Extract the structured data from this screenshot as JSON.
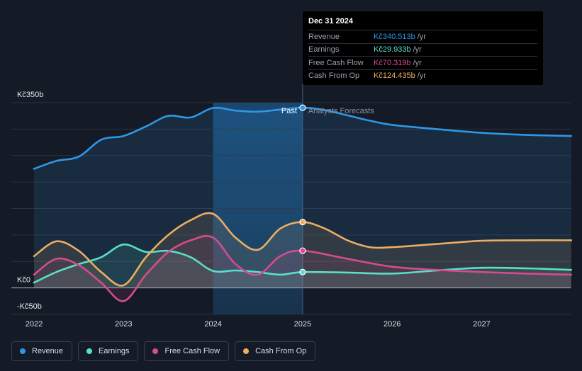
{
  "chart_data": {
    "type": "line",
    "title": "",
    "xlabel": "",
    "ylabel": "",
    "ylim": [
      -50,
      350
    ],
    "y_axis_labels": [
      {
        "value": 350,
        "label": "Kč350b"
      },
      {
        "value": 0,
        "label": "Kč0"
      },
      {
        "value": -50,
        "label": "-Kč50b"
      }
    ],
    "x_ticks": [
      {
        "value": 2022,
        "label": "2022"
      },
      {
        "value": 2023,
        "label": "2023"
      },
      {
        "value": 2024,
        "label": "2024"
      },
      {
        "value": 2025,
        "label": "2025"
      },
      {
        "value": 2026,
        "label": "2026"
      },
      {
        "value": 2027,
        "label": "2027"
      }
    ],
    "xlim": [
      2021.75,
      2028.0
    ],
    "divider_x": 2025.0,
    "highlight_range": [
      2024.0,
      2025.0
    ],
    "period_labels": {
      "past": "Past",
      "forecast": "Analysts Forecasts"
    },
    "series": [
      {
        "name": "Revenue",
        "color": "#2e97e6",
        "points": [
          [
            2022.0,
            225
          ],
          [
            2022.25,
            240
          ],
          [
            2022.5,
            248
          ],
          [
            2022.75,
            280
          ],
          [
            2023.0,
            287
          ],
          [
            2023.25,
            305
          ],
          [
            2023.5,
            325
          ],
          [
            2023.75,
            322
          ],
          [
            2024.0,
            340
          ],
          [
            2024.25,
            335
          ],
          [
            2024.5,
            333
          ],
          [
            2024.75,
            337
          ],
          [
            2025.0,
            340.5
          ],
          [
            2025.25,
            336
          ],
          [
            2025.5,
            326
          ],
          [
            2025.75,
            316
          ],
          [
            2026.0,
            308
          ],
          [
            2026.5,
            300
          ],
          [
            2027.0,
            293
          ],
          [
            2027.5,
            289
          ],
          [
            2028.0,
            287
          ]
        ]
      },
      {
        "name": "Earnings",
        "color": "#58e0c8",
        "points": [
          [
            2022.0,
            10
          ],
          [
            2022.25,
            30
          ],
          [
            2022.5,
            45
          ],
          [
            2022.75,
            58
          ],
          [
            2023.0,
            82
          ],
          [
            2023.25,
            68
          ],
          [
            2023.5,
            70
          ],
          [
            2023.75,
            58
          ],
          [
            2024.0,
            32
          ],
          [
            2024.25,
            33
          ],
          [
            2024.5,
            30
          ],
          [
            2024.75,
            25
          ],
          [
            2025.0,
            29.9
          ],
          [
            2025.5,
            29
          ],
          [
            2026.0,
            27
          ],
          [
            2026.5,
            33
          ],
          [
            2027.0,
            38
          ],
          [
            2027.5,
            37
          ],
          [
            2028.0,
            34
          ]
        ]
      },
      {
        "name": "Free Cash Flow",
        "color": "#d64b8f",
        "points": [
          [
            2022.0,
            25
          ],
          [
            2022.25,
            55
          ],
          [
            2022.5,
            43
          ],
          [
            2022.75,
            10
          ],
          [
            2023.0,
            -25
          ],
          [
            2023.25,
            25
          ],
          [
            2023.5,
            68
          ],
          [
            2023.75,
            90
          ],
          [
            2024.0,
            95
          ],
          [
            2024.25,
            45
          ],
          [
            2024.5,
            25
          ],
          [
            2024.75,
            60
          ],
          [
            2025.0,
            70.3
          ],
          [
            2025.5,
            55
          ],
          [
            2026.0,
            40
          ],
          [
            2026.5,
            34
          ],
          [
            2027.0,
            30
          ],
          [
            2027.5,
            27
          ],
          [
            2028.0,
            25
          ]
        ]
      },
      {
        "name": "Cash From Op",
        "color": "#ecad63",
        "points": [
          [
            2022.0,
            60
          ],
          [
            2022.25,
            88
          ],
          [
            2022.5,
            70
          ],
          [
            2022.75,
            30
          ],
          [
            2023.0,
            5
          ],
          [
            2023.25,
            58
          ],
          [
            2023.5,
            100
          ],
          [
            2023.75,
            128
          ],
          [
            2024.0,
            140
          ],
          [
            2024.25,
            95
          ],
          [
            2024.5,
            72
          ],
          [
            2024.75,
            112
          ],
          [
            2025.0,
            124.4
          ],
          [
            2025.25,
            112
          ],
          [
            2025.5,
            90
          ],
          [
            2025.75,
            77
          ],
          [
            2026.0,
            77
          ],
          [
            2026.5,
            83
          ],
          [
            2027.0,
            89
          ],
          [
            2027.5,
            90
          ],
          [
            2028.0,
            90
          ]
        ]
      }
    ]
  },
  "tooltip": {
    "date": "Dec 31 2024",
    "rows": [
      {
        "name": "Revenue",
        "value": "Kč340.513b",
        "unit": "/yr",
        "color": "#2e97e6"
      },
      {
        "name": "Earnings",
        "value": "Kč29.933b",
        "unit": "/yr",
        "color": "#58e0c8"
      },
      {
        "name": "Free Cash Flow",
        "value": "Kč70.319b",
        "unit": "/yr",
        "color": "#d64b8f"
      },
      {
        "name": "Cash From Op",
        "value": "Kč124.435b",
        "unit": "/yr",
        "color": "#ecad63"
      }
    ]
  },
  "legend": [
    {
      "label": "Revenue",
      "color": "#2e97e6"
    },
    {
      "label": "Earnings",
      "color": "#58e0c8"
    },
    {
      "label": "Free Cash Flow",
      "color": "#d64b8f"
    },
    {
      "label": "Cash From Op",
      "color": "#ecad63"
    }
  ]
}
